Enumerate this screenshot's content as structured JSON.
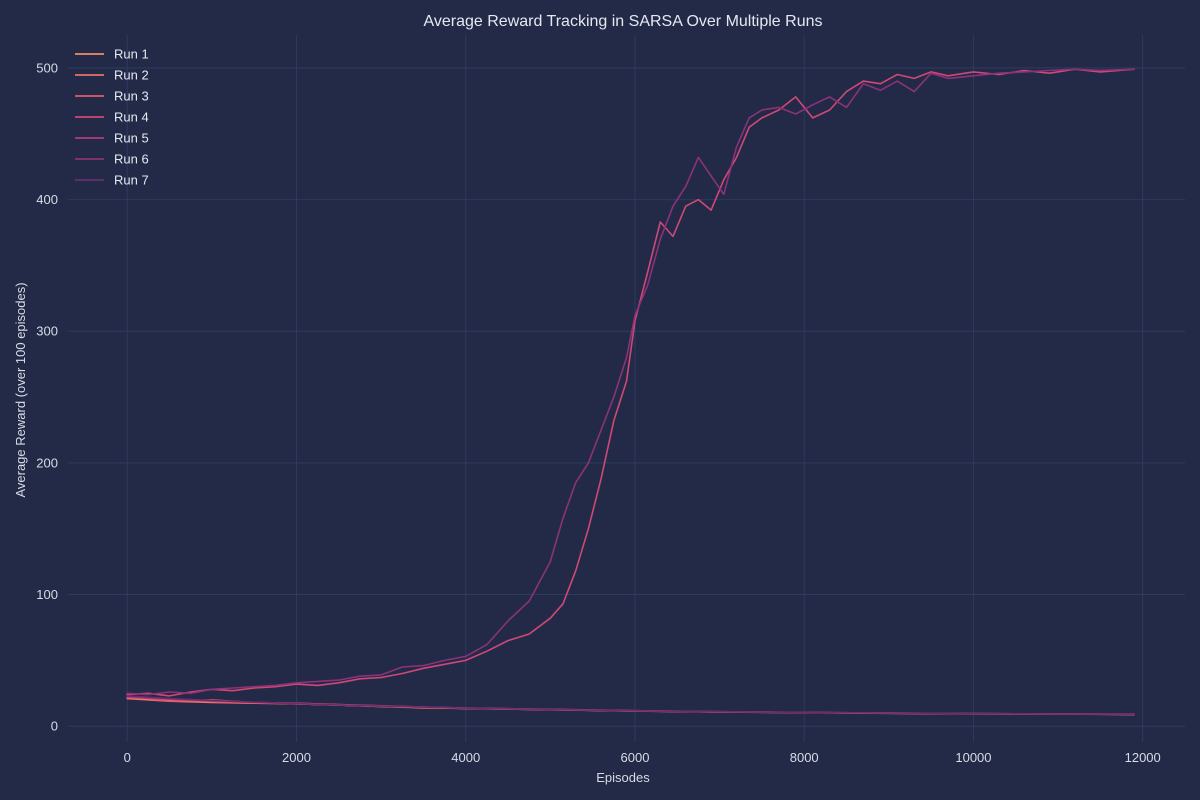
{
  "chart_data": {
    "type": "line",
    "title": "Average Reward Tracking in SARSA Over Multiple Runs",
    "xlabel": "Episodes",
    "ylabel": "Average Reward (over 100 episodes)",
    "xlim": [
      -700,
      12500
    ],
    "ylim": [
      -12,
      525
    ],
    "xticks": [
      0,
      2000,
      4000,
      6000,
      8000,
      10000,
      12000
    ],
    "yticks": [
      0,
      100,
      200,
      300,
      400,
      500
    ],
    "grid": true,
    "legend_position": "top-left",
    "background": "#222a48",
    "series": [
      {
        "name": "Run 1",
        "color": "#f08a6a",
        "x": [
          0,
          500,
          1000,
          1500,
          2000,
          2500,
          3000,
          3500,
          4000,
          5000,
          6000,
          7000,
          8000,
          9000,
          10000,
          11000,
          11900
        ],
        "y": [
          22,
          20,
          19,
          18,
          17,
          16,
          15,
          14,
          13.5,
          12.5,
          11.5,
          10.8,
          10.3,
          9.8,
          9.4,
          9.2,
          9.0
        ]
      },
      {
        "name": "Run 2",
        "color": "#ec6f68",
        "x": [
          0,
          500,
          1000,
          1500,
          2000,
          2500,
          3000,
          3500,
          4000,
          5000,
          6000,
          7000,
          8000,
          9000,
          10000,
          11000,
          11900
        ],
        "y": [
          21,
          19,
          18,
          17.5,
          17,
          16,
          15,
          14.2,
          13.5,
          12.5,
          11.6,
          10.9,
          10.4,
          9.9,
          9.5,
          9.3,
          9.0
        ]
      },
      {
        "name": "Run 3",
        "color": "#e05a6e",
        "x": [
          0,
          500,
          1000,
          1500,
          2000,
          2500,
          3000,
          3500,
          4000,
          5000,
          6000,
          7000,
          8000,
          9000,
          10000,
          11000,
          11900
        ],
        "y": [
          23,
          19,
          20,
          18,
          17.5,
          16.5,
          15.5,
          14.5,
          13.8,
          12.8,
          11.8,
          11.0,
          10.5,
          10.0,
          9.6,
          9.3,
          9.1
        ]
      },
      {
        "name": "Run 4",
        "color": "#cf4877",
        "x": [
          0,
          250,
          500,
          750,
          1000,
          1250,
          1500,
          1750,
          2000,
          2250,
          2500,
          2750,
          3000,
          3250,
          3500,
          3750,
          4000,
          4250,
          4500,
          4750,
          5000,
          5150,
          5300,
          5450,
          5600,
          5750,
          5900,
          6000,
          6150,
          6300,
          6450,
          6600,
          6750,
          6900,
          7050,
          7200,
          7350,
          7500,
          7700,
          7900,
          8100,
          8300,
          8500,
          8700,
          8900,
          9100,
          9300,
          9500,
          9700,
          10000,
          10300,
          10600,
          10900,
          11200,
          11500,
          11900
        ],
        "y": [
          24,
          25,
          23,
          26,
          28,
          27,
          29,
          30,
          32,
          31,
          33,
          36,
          37,
          40,
          44,
          47,
          50,
          57,
          65,
          70,
          82,
          93,
          118,
          150,
          188,
          232,
          262,
          308,
          345,
          383,
          372,
          395,
          400,
          392,
          415,
          432,
          455,
          462,
          468,
          478,
          462,
          468,
          482,
          490,
          488,
          495,
          492,
          497,
          494,
          497,
          495,
          498,
          496,
          499,
          497,
          499
        ]
      },
      {
        "name": "Run 5",
        "color": "#b23e79",
        "x": [
          0,
          500,
          1000,
          1500,
          2000,
          2500,
          3000,
          3500,
          4000,
          5000,
          6000,
          7000,
          8000,
          9000,
          10000,
          11000,
          11900
        ],
        "y": [
          22,
          20.5,
          19,
          18,
          17,
          16,
          15.2,
          14.4,
          13.6,
          12.6,
          11.6,
          10.9,
          10.4,
          9.9,
          9.5,
          9.2,
          9.1
        ]
      },
      {
        "name": "Run 6",
        "color": "#8c3277",
        "x": [
          0,
          250,
          500,
          750,
          1000,
          1250,
          1500,
          1750,
          2000,
          2250,
          2500,
          2750,
          3000,
          3250,
          3500,
          3750,
          4000,
          4250,
          4500,
          4750,
          5000,
          5150,
          5300,
          5450,
          5600,
          5750,
          5900,
          6000,
          6150,
          6300,
          6450,
          6600,
          6750,
          6900,
          7050,
          7200,
          7350,
          7500,
          7700,
          7900,
          8100,
          8300,
          8500,
          8700,
          8900,
          9100,
          9300,
          9500,
          9700,
          10000,
          10300,
          10600,
          10900,
          11200,
          11500,
          11900
        ],
        "y": [
          25,
          24,
          26,
          25,
          28,
          29,
          30,
          31,
          33,
          34,
          35,
          38,
          39,
          45,
          46,
          50,
          53,
          62,
          80,
          95,
          125,
          158,
          185,
          200,
          225,
          250,
          280,
          312,
          335,
          370,
          395,
          410,
          432,
          418,
          404,
          440,
          462,
          468,
          470,
          465,
          472,
          478,
          470,
          488,
          483,
          490,
          482,
          496,
          492,
          494,
          496,
          497,
          498,
          499,
          498,
          499
        ]
      },
      {
        "name": "Run 7",
        "color": "#6a2c6e",
        "x": [
          0,
          500,
          1000,
          1500,
          2000,
          2500,
          3000,
          3500,
          4000,
          5000,
          6000,
          7000,
          8000,
          9000,
          10000,
          11000,
          11900
        ],
        "y": [
          23,
          21,
          19.5,
          18.2,
          17.2,
          16.2,
          15.3,
          14.5,
          13.7,
          12.7,
          11.7,
          11.0,
          10.5,
          10.0,
          9.6,
          9.3,
          9.2
        ]
      }
    ]
  }
}
